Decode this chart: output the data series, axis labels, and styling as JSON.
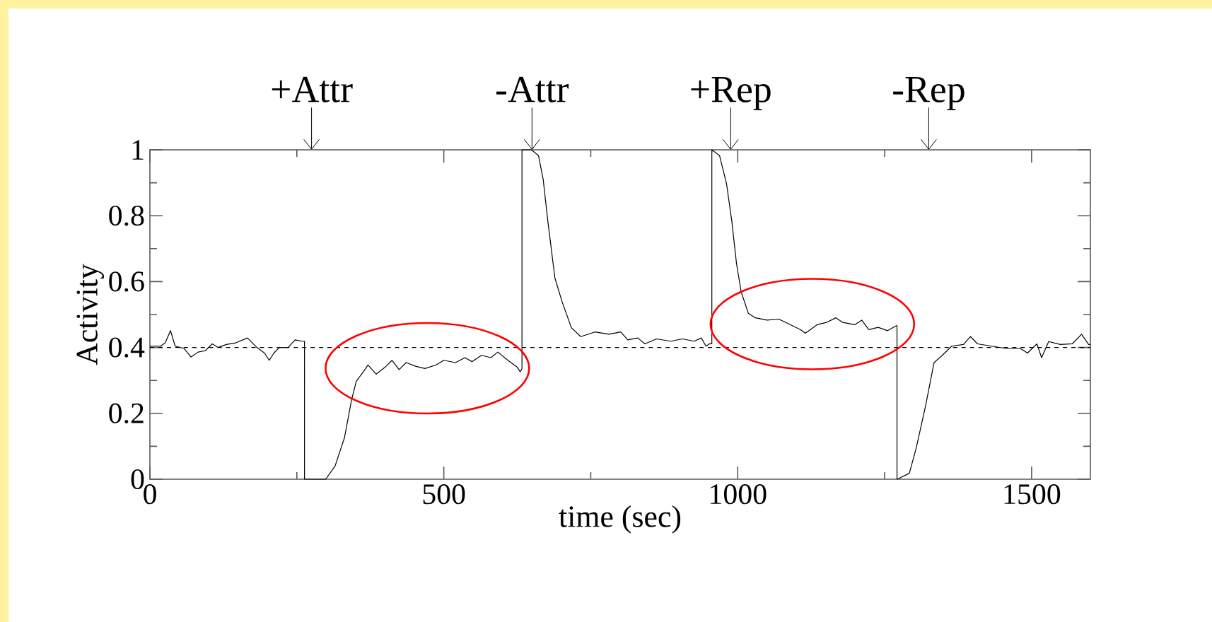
{
  "chart_data": {
    "type": "line",
    "xlabel": "time (sec)",
    "ylabel": "Activity",
    "x": [
      0,
      18,
      26,
      35,
      43,
      58,
      70,
      82,
      94,
      106,
      116,
      130,
      146,
      166,
      182,
      195,
      203,
      211,
      220,
      235,
      247,
      259,
      263,
      263,
      275,
      299,
      315,
      331,
      343,
      351,
      363,
      371,
      385,
      400,
      412,
      424,
      436,
      452,
      468,
      487,
      500,
      520,
      536,
      548,
      564,
      580,
      592,
      609,
      625,
      630,
      633,
      633,
      649,
      661,
      669,
      677,
      689,
      701,
      717,
      733,
      757,
      781,
      801,
      813,
      830,
      842,
      862,
      886,
      906,
      926,
      938,
      946,
      952,
      956,
      956,
      969,
      981,
      990,
      998,
      1006,
      1018,
      1030,
      1050,
      1070,
      1090,
      1107,
      1115,
      1135,
      1151,
      1167,
      1179,
      1199,
      1211,
      1223,
      1239,
      1255,
      1270,
      1271,
      1271,
      1292,
      1304,
      1320,
      1334,
      1348,
      1364,
      1384,
      1396,
      1408,
      1432,
      1457,
      1481,
      1493,
      1509,
      1517,
      1529,
      1549,
      1569,
      1585,
      1597,
      1600
    ],
    "series": [
      {
        "color": "#000000",
        "values": [
          0.404,
          0.404,
          0.414,
          0.451,
          0.404,
          0.397,
          0.371,
          0.386,
          0.39,
          0.411,
          0.4,
          0.409,
          0.414,
          0.429,
          0.4,
          0.383,
          0.361,
          0.383,
          0.4,
          0.4,
          0.423,
          0.419,
          0.419,
          0,
          0,
          0,
          0.04,
          0.126,
          0.24,
          0.297,
          0.326,
          0.347,
          0.319,
          0.34,
          0.361,
          0.333,
          0.354,
          0.343,
          0.336,
          0.347,
          0.361,
          0.354,
          0.369,
          0.357,
          0.376,
          0.369,
          0.386,
          0.361,
          0.34,
          0.326,
          0.336,
          1,
          1,
          0.983,
          0.911,
          0.783,
          0.611,
          0.54,
          0.46,
          0.433,
          0.447,
          0.44,
          0.447,
          0.423,
          0.429,
          0.411,
          0.426,
          0.419,
          0.426,
          0.419,
          0.429,
          0.404,
          0.411,
          0.411,
          1,
          0.983,
          0.897,
          0.783,
          0.654,
          0.568,
          0.504,
          0.49,
          0.483,
          0.486,
          0.469,
          0.454,
          0.443,
          0.469,
          0.476,
          0.49,
          0.476,
          0.469,
          0.483,
          0.454,
          0.461,
          0.451,
          0.466,
          0.466,
          0,
          0.018,
          0.097,
          0.226,
          0.354,
          0.376,
          0.404,
          0.409,
          0.433,
          0.411,
          0.404,
          0.397,
          0.397,
          0.383,
          0.411,
          0.369,
          0.418,
          0.409,
          0.411,
          0.44,
          0.409,
          0.409
        ]
      }
    ],
    "xlim": [
      0,
      1600
    ],
    "ylim": [
      0,
      1
    ],
    "xticks": [
      0,
      500,
      1000,
      1500
    ],
    "yticks": [
      0,
      0.2,
      0.4,
      0.6,
      0.8,
      1
    ],
    "ref_lines": [
      {
        "axis": "y",
        "value": 0.4,
        "color": "#000000",
        "line_style": "dashed"
      }
    ],
    "annotations": [
      {
        "text": "+Attr",
        "x": 275
      },
      {
        "text": "-Attr",
        "x": 650
      },
      {
        "text": "+Rep",
        "x": 988
      },
      {
        "text": "-Rep",
        "x": 1325
      }
    ],
    "grid": false,
    "marker": "none",
    "line_style": "solid"
  }
}
